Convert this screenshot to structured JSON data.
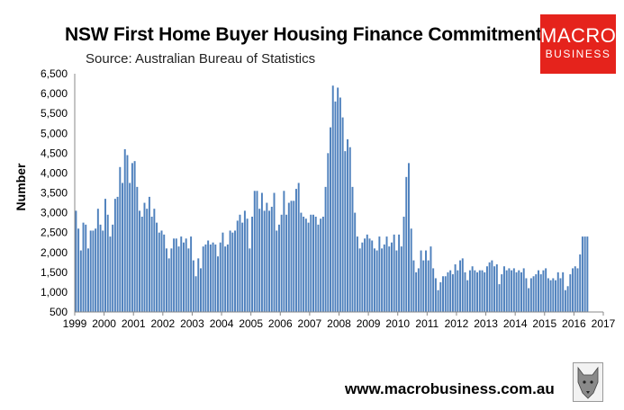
{
  "title": "NSW First Home Buyer Housing Finance Commitments",
  "subtitle": "Source: Australian Bureau of Statistics",
  "logo": {
    "line1": "MACRO",
    "line2": "BUSINESS",
    "color": "#e5231c"
  },
  "footer": "www.macrobusiness.com.au",
  "wolf_icon": "wolf-head-icon",
  "chart_data": {
    "type": "bar",
    "ylabel": "Number",
    "xlabel": "",
    "ylim": [
      500,
      6500
    ],
    "yticks": [
      "500",
      "1,000",
      "1,500",
      "2,000",
      "2,500",
      "3,000",
      "3,500",
      "4,000",
      "4,500",
      "5,000",
      "5,500",
      "6,000",
      "6,500"
    ],
    "xticks": [
      "1999",
      "2000",
      "2001",
      "2002",
      "2003",
      "2004",
      "2005",
      "2006",
      "2007",
      "2008",
      "2009",
      "2010",
      "2011",
      "2012",
      "2013",
      "2014",
      "2015",
      "2016",
      "2017"
    ],
    "start": "1999-01",
    "frequency": "monthly",
    "bar_color": "#4f81bd",
    "values": [
      3050,
      2600,
      2050,
      2750,
      2700,
      2100,
      2550,
      2550,
      2600,
      3100,
      2700,
      2550,
      3350,
      2950,
      2400,
      2700,
      3350,
      3400,
      4150,
      3750,
      4600,
      4450,
      3750,
      4250,
      4300,
      3650,
      3050,
      2900,
      3250,
      3100,
      3400,
      2900,
      3100,
      2750,
      2500,
      2550,
      2450,
      2100,
      1850,
      2100,
      2350,
      2350,
      2150,
      2400,
      2250,
      2350,
      2100,
      2400,
      1800,
      1400,
      1850,
      1600,
      2150,
      2200,
      2300,
      2200,
      2250,
      2200,
      1900,
      2250,
      2500,
      2150,
      2200,
      2550,
      2500,
      2550,
      2800,
      2950,
      2750,
      3050,
      2850,
      2100,
      2900,
      3550,
      3550,
      3100,
      3500,
      3050,
      3250,
      3050,
      3150,
      3500,
      2550,
      2700,
      2950,
      3550,
      2950,
      3250,
      3300,
      3300,
      3600,
      3750,
      3000,
      2900,
      2850,
      2750,
      2950,
      2950,
      2900,
      2700,
      2850,
      2900,
      3650,
      4500,
      5150,
      6200,
      5800,
      6150,
      5900,
      5400,
      4550,
      4850,
      4650,
      3650,
      3000,
      2400,
      2100,
      2250,
      2350,
      2450,
      2350,
      2300,
      2100,
      2050,
      2400,
      2100,
      2200,
      2400,
      2150,
      2250,
      2450,
      2050,
      2450,
      2150,
      2900,
      3900,
      4250,
      2600,
      1800,
      1500,
      1600,
      2050,
      1800,
      2050,
      1800,
      2150,
      1600,
      1350,
      1050,
      1250,
      1400,
      1400,
      1500,
      1550,
      1450,
      1700,
      1550,
      1800,
      1850,
      1500,
      1300,
      1550,
      1650,
      1550,
      1500,
      1550,
      1550,
      1500,
      1650,
      1750,
      1800,
      1650,
      1700,
      1200,
      1450,
      1650,
      1550,
      1600,
      1550,
      1600,
      1500,
      1550,
      1500,
      1600,
      1350,
      1100,
      1350,
      1400,
      1450,
      1550,
      1450,
      1550,
      1600,
      1350,
      1300,
      1350,
      1300,
      1500,
      1350,
      1500,
      1050,
      1150,
      1450,
      1600,
      1650,
      1600,
      1950,
      2400,
      2400,
      2400
    ]
  }
}
